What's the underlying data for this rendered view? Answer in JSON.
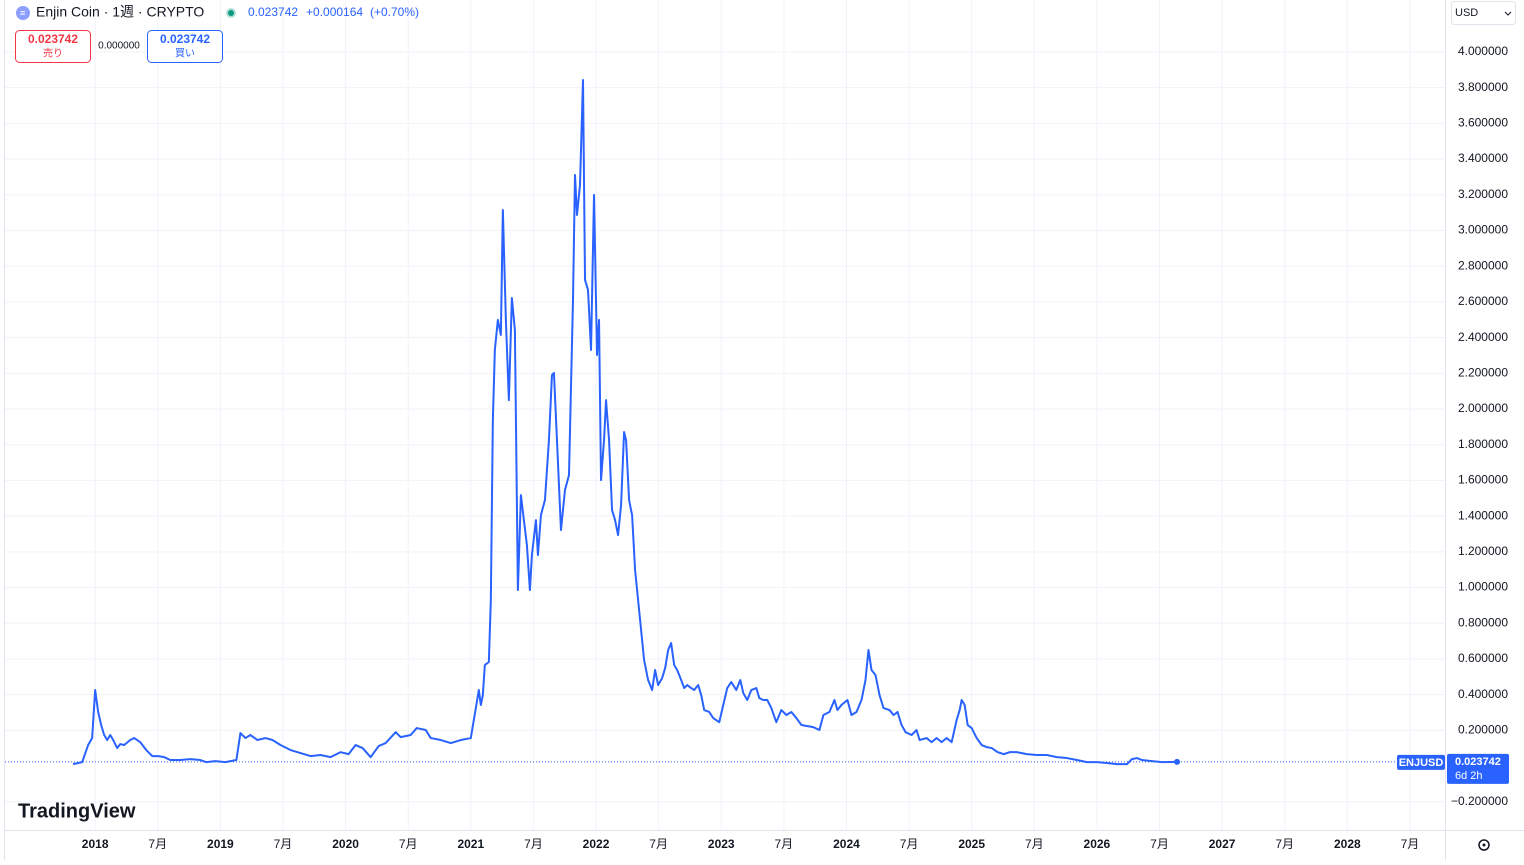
{
  "header": {
    "symbol": "Enjin Coin · 1週 · CRYPTO",
    "price": 0.023742,
    "change": "+0.000164",
    "change_pct": "(+0.70%)",
    "sell_label": "売り",
    "buy_label": "買い",
    "spread": "0.000000",
    "currency": "USD",
    "countdown": "6d 2h",
    "logo": "TradingView"
  },
  "chart_data": {
    "type": "line",
    "x": [
      2017.824,
      2017.896,
      2017.944,
      2017.976,
      2018.0,
      2018.024,
      2018.048,
      2018.072,
      2018.096,
      2018.12,
      2018.144,
      2018.176,
      2018.2,
      2018.232,
      2018.28,
      2018.312,
      2018.36,
      2018.408,
      2018.456,
      2018.504,
      2018.552,
      2018.6,
      2018.68,
      2018.76,
      2018.84,
      2018.888,
      2018.96,
      2019.04,
      2019.128,
      2019.16,
      2019.2,
      2019.24,
      2019.296,
      2019.36,
      2019.416,
      2019.48,
      2019.56,
      2019.64,
      2019.72,
      2019.8,
      2019.88,
      2019.96,
      2020.024,
      2020.08,
      2020.136,
      2020.2,
      2020.264,
      2020.32,
      2020.4,
      2020.44,
      2020.52,
      2020.568,
      2020.64,
      2020.68,
      2020.76,
      2020.84,
      2020.92,
      2021.0,
      2021.04,
      2021.064,
      2021.08,
      2021.096,
      2021.112,
      2021.144,
      2021.16,
      2021.176,
      2021.192,
      2021.216,
      2021.24,
      2021.256,
      2021.28,
      2021.304,
      2021.328,
      2021.352,
      2021.376,
      2021.4,
      2021.424,
      2021.448,
      2021.472,
      2021.488,
      2021.52,
      2021.536,
      2021.56,
      2021.592,
      2021.624,
      2021.648,
      2021.664,
      2021.688,
      2021.72,
      2021.752,
      2021.784,
      2021.816,
      2021.832,
      2021.848,
      2021.872,
      2021.896,
      2021.912,
      2021.936,
      2021.96,
      2021.984,
      2022.008,
      2022.024,
      2022.04,
      2022.064,
      2022.08,
      2022.104,
      2022.128,
      2022.152,
      2022.176,
      2022.2,
      2022.224,
      2022.24,
      2022.264,
      2022.288,
      2022.312,
      2022.336,
      2022.36,
      2022.384,
      2022.416,
      2022.448,
      2022.472,
      2022.496,
      2022.528,
      2022.552,
      2022.576,
      2022.6,
      2022.624,
      2022.648,
      2022.68,
      2022.704,
      2022.728,
      2022.76,
      2022.784,
      2022.816,
      2022.84,
      2022.864,
      2022.904,
      2022.936,
      2022.984,
      2023.016,
      2023.048,
      2023.08,
      2023.12,
      2023.152,
      2023.176,
      2023.208,
      2023.24,
      2023.28,
      2023.304,
      2023.336,
      2023.368,
      2023.4,
      2023.44,
      2023.48,
      2023.52,
      2023.56,
      2023.6,
      2023.64,
      2023.688,
      2023.736,
      2023.784,
      2023.816,
      2023.864,
      2023.904,
      2023.928,
      2023.96,
      2024.008,
      2024.04,
      2024.08,
      2024.12,
      2024.152,
      2024.176,
      2024.2,
      2024.232,
      2024.264,
      2024.296,
      2024.344,
      2024.376,
      2024.408,
      2024.44,
      2024.472,
      2024.52,
      2024.56,
      2024.584,
      2024.64,
      2024.68,
      2024.72,
      2024.76,
      2024.8,
      2024.84,
      2024.88,
      2024.904,
      2024.92,
      2024.944,
      2024.968,
      2025.0,
      2025.04,
      2025.08,
      2025.12,
      2025.16,
      2025.208,
      2025.256,
      2025.304,
      2025.36,
      2025.44,
      2025.52,
      2025.6,
      2025.68,
      2025.76,
      2025.84,
      2025.92,
      2026.0,
      2026.08,
      2026.16,
      2026.24,
      2026.28,
      2026.32,
      2026.36,
      2026.44,
      2026.52,
      2026.64
    ],
    "series": [
      {
        "name": "ENJUSD",
        "color": "#2962ff",
        "values": [
          0.011,
          0.022,
          0.118,
          0.157,
          0.426,
          0.303,
          0.23,
          0.174,
          0.146,
          0.174,
          0.146,
          0.101,
          0.123,
          0.118,
          0.146,
          0.157,
          0.134,
          0.09,
          0.056,
          0.056,
          0.05,
          0.034,
          0.034,
          0.039,
          0.034,
          0.022,
          0.028,
          0.022,
          0.034,
          0.185,
          0.157,
          0.174,
          0.146,
          0.157,
          0.146,
          0.118,
          0.09,
          0.073,
          0.056,
          0.062,
          0.05,
          0.078,
          0.067,
          0.118,
          0.101,
          0.05,
          0.112,
          0.129,
          0.19,
          0.162,
          0.174,
          0.213,
          0.202,
          0.157,
          0.146,
          0.129,
          0.146,
          0.157,
          0.325,
          0.426,
          0.342,
          0.398,
          0.566,
          0.583,
          0.93,
          1.938,
          2.331,
          2.499,
          2.415,
          3.115,
          2.499,
          2.05,
          2.622,
          2.443,
          0.986,
          1.518,
          1.378,
          1.238,
          0.986,
          1.182,
          1.378,
          1.182,
          1.406,
          1.49,
          1.826,
          2.19,
          2.202,
          1.826,
          1.322,
          1.546,
          1.63,
          2.611,
          3.311,
          3.087,
          3.255,
          3.843,
          2.723,
          2.667,
          2.331,
          3.199,
          2.303,
          2.499,
          1.602,
          1.826,
          2.05,
          1.826,
          1.434,
          1.378,
          1.294,
          1.462,
          1.871,
          1.826,
          1.49,
          1.406,
          1.098,
          0.93,
          0.762,
          0.594,
          0.482,
          0.426,
          0.538,
          0.454,
          0.493,
          0.549,
          0.65,
          0.689,
          0.566,
          0.538,
          0.482,
          0.437,
          0.454,
          0.437,
          0.426,
          0.454,
          0.398,
          0.314,
          0.303,
          0.269,
          0.246,
          0.342,
          0.437,
          0.471,
          0.426,
          0.482,
          0.409,
          0.37,
          0.426,
          0.437,
          0.381,
          0.37,
          0.37,
          0.325,
          0.246,
          0.314,
          0.286,
          0.303,
          0.269,
          0.23,
          0.224,
          0.218,
          0.202,
          0.286,
          0.303,
          0.37,
          0.314,
          0.342,
          0.37,
          0.286,
          0.303,
          0.37,
          0.482,
          0.65,
          0.538,
          0.51,
          0.398,
          0.325,
          0.314,
          0.286,
          0.303,
          0.23,
          0.19,
          0.174,
          0.202,
          0.146,
          0.157,
          0.134,
          0.157,
          0.134,
          0.157,
          0.134,
          0.258,
          0.314,
          0.37,
          0.342,
          0.23,
          0.213,
          0.157,
          0.118,
          0.106,
          0.101,
          0.078,
          0.067,
          0.078,
          0.078,
          0.067,
          0.062,
          0.062,
          0.05,
          0.045,
          0.034,
          0.022,
          0.022,
          0.017,
          0.011,
          0.011,
          0.039,
          0.045,
          0.034,
          0.028,
          0.022,
          0.023742
        ]
      }
    ],
    "xlim": [
      2017.28,
      2028.78
    ],
    "xticks": [
      2018,
      {
        "value": 2018.5,
        "label": "7月"
      },
      2019,
      {
        "value": 2019.5,
        "label": "7月"
      },
      2020,
      {
        "value": 2020.5,
        "label": "7月"
      },
      2021,
      {
        "value": 2021.5,
        "label": "7月"
      },
      2022,
      {
        "value": 2022.5,
        "label": "7月"
      },
      2023,
      {
        "value": 2023.5,
        "label": "7月"
      },
      2024,
      {
        "value": 2024.5,
        "label": "7月"
      },
      2025,
      {
        "value": 2025.5,
        "label": "7月"
      },
      2026,
      {
        "value": 2026.5,
        "label": "7月"
      },
      2027,
      {
        "value": 2027.5,
        "label": "7月"
      },
      2028,
      {
        "value": 2028.5,
        "label": "7月"
      }
    ],
    "ylim": [
      -0.358,
      4.291
    ],
    "yticks": [
      {
        "value": -0.2,
        "label": "−0.200000"
      },
      {
        "value": 0.2,
        "label": "0.200000"
      },
      {
        "value": 0.4,
        "label": "0.400000"
      },
      {
        "value": 0.6,
        "label": "0.600000"
      },
      {
        "value": 0.8,
        "label": "0.800000"
      },
      {
        "value": 1.0,
        "label": "1.000000"
      },
      {
        "value": 1.2,
        "label": "1.200000"
      },
      {
        "value": 1.4,
        "label": "1.400000"
      },
      {
        "value": 1.6,
        "label": "1.600000"
      },
      {
        "value": 1.8,
        "label": "1.800000"
      },
      {
        "value": 2.0,
        "label": "2.000000"
      },
      {
        "value": 2.2,
        "label": "2.200000"
      },
      {
        "value": 2.4,
        "label": "2.400000"
      },
      {
        "value": 2.6,
        "label": "2.600000"
      },
      {
        "value": 2.8,
        "label": "2.800000"
      },
      {
        "value": 3.0,
        "label": "3.000000"
      },
      {
        "value": 3.2,
        "label": "3.200000"
      },
      {
        "value": 3.4,
        "label": "3.400000"
      },
      {
        "value": 3.6,
        "label": "3.600000"
      },
      {
        "value": 3.8,
        "label": "3.800000"
      },
      {
        "value": 4.0,
        "label": "4.000000"
      }
    ],
    "grid": true
  }
}
